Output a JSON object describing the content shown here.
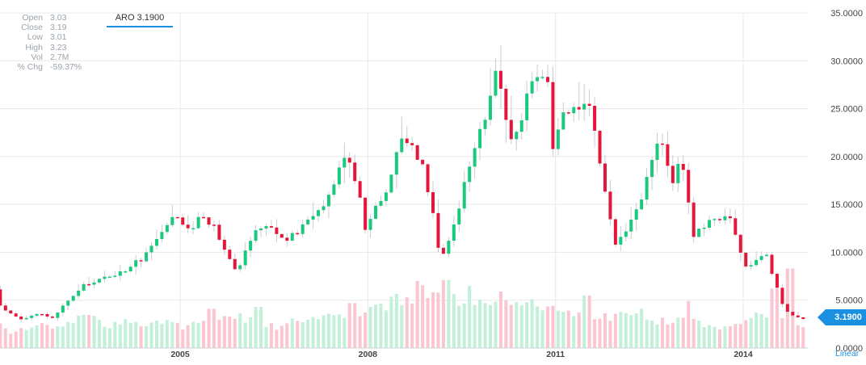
{
  "stats": [
    {
      "label": "Open",
      "value": "3.03"
    },
    {
      "label": "Close",
      "value": "3.19"
    },
    {
      "label": "Low",
      "value": "3.01"
    },
    {
      "label": "High",
      "value": "3.23"
    },
    {
      "label": "Vol",
      "value": "2.7M"
    },
    {
      "label": "% Chg",
      "value": "-59.37%"
    }
  ],
  "ticker_tab": "ARO 3.1900",
  "last_price_badge": "3.1900",
  "scale_mode": "Linear",
  "colors": {
    "up": "#19c97d",
    "down": "#e4173b",
    "up_volume": "#c3f0d9",
    "down_volume": "#fbc6d1",
    "accent": "#1a91e0",
    "grid": "#e8e8e8",
    "axis_text": "#444444"
  },
  "chart_data": {
    "type": "candlestick",
    "symbol": "ARO",
    "interval": "monthly",
    "x_range": [
      2002.0,
      2015.0
    ],
    "ylim": [
      0,
      35
    ],
    "ytick_values": [
      0,
      5,
      10,
      15,
      20,
      25,
      30,
      35
    ],
    "ytick_labels": [
      "0.0000",
      "5.0000",
      "10.0000",
      "15.0000",
      "20.0000",
      "25.0000",
      "30.0000",
      "35.0000"
    ],
    "xtick_values": [
      2005,
      2008,
      2011,
      2014
    ],
    "xtick_labels": [
      "2005",
      "2008",
      "2011",
      "2014"
    ],
    "grid": true,
    "last_price": 3.19,
    "price_anchors": [
      [
        2002.0,
        7.8
      ],
      [
        2002.15,
        4.5
      ],
      [
        2002.3,
        3.7
      ],
      [
        2002.5,
        3.0
      ],
      [
        2002.8,
        3.6
      ],
      [
        2003.0,
        3.1
      ],
      [
        2003.2,
        4.6
      ],
      [
        2003.5,
        6.5
      ],
      [
        2003.8,
        7.3
      ],
      [
        2004.1,
        7.9
      ],
      [
        2004.4,
        9.2
      ],
      [
        2004.7,
        11.6
      ],
      [
        2004.95,
        13.6
      ],
      [
        2005.2,
        12.3
      ],
      [
        2005.4,
        14.0
      ],
      [
        2005.6,
        12.5
      ],
      [
        2005.8,
        9.8
      ],
      [
        2005.95,
        8.1
      ],
      [
        2006.2,
        12.0
      ],
      [
        2006.45,
        13.1
      ],
      [
        2006.7,
        11.0
      ],
      [
        2006.9,
        12.0
      ],
      [
        2007.15,
        13.7
      ],
      [
        2007.4,
        15.8
      ],
      [
        2007.7,
        20.8
      ],
      [
        2007.9,
        16.1
      ],
      [
        2008.0,
        12.6
      ],
      [
        2008.3,
        16.0
      ],
      [
        2008.6,
        22.3
      ],
      [
        2008.9,
        19.6
      ],
      [
        2009.1,
        13.9
      ],
      [
        2009.2,
        9.0
      ],
      [
        2009.45,
        13.2
      ],
      [
        2009.7,
        20.5
      ],
      [
        2009.9,
        24.0
      ],
      [
        2010.1,
        28.7
      ],
      [
        2010.3,
        22.2
      ],
      [
        2010.5,
        23.5
      ],
      [
        2010.65,
        28.6
      ],
      [
        2010.9,
        28.5
      ],
      [
        2011.0,
        21.3
      ],
      [
        2011.2,
        25.4
      ],
      [
        2011.4,
        24.1
      ],
      [
        2011.6,
        25.6
      ],
      [
        2011.8,
        17.4
      ],
      [
        2012.0,
        10.8
      ],
      [
        2012.2,
        12.5
      ],
      [
        2012.4,
        15.2
      ],
      [
        2012.7,
        22.1
      ],
      [
        2012.9,
        17.4
      ],
      [
        2013.05,
        20.1
      ],
      [
        2013.25,
        11.8
      ],
      [
        2013.5,
        13.0
      ],
      [
        2013.8,
        14.3
      ],
      [
        2014.1,
        8.0
      ],
      [
        2014.4,
        9.9
      ],
      [
        2014.7,
        4.0
      ],
      [
        2014.95,
        3.0
      ],
      [
        2015.2,
        3.19
      ]
    ],
    "volume_anchors": [
      [
        2002.0,
        3.1
      ],
      [
        2002.3,
        1.4
      ],
      [
        2002.6,
        2.5
      ],
      [
        2002.9,
        2.3
      ],
      [
        2003.2,
        2.7
      ],
      [
        2003.5,
        3.6
      ],
      [
        2003.8,
        2.2
      ],
      [
        2004.1,
        2.8
      ],
      [
        2004.4,
        2.4
      ],
      [
        2004.7,
        3.0
      ],
      [
        2005.0,
        2.1
      ],
      [
        2005.3,
        2.9
      ],
      [
        2005.6,
        3.5
      ],
      [
        2005.9,
        3.3
      ],
      [
        2006.2,
        2.7
      ],
      [
        2006.5,
        2.1
      ],
      [
        2006.8,
        2.9
      ],
      [
        2007.1,
        3.0
      ],
      [
        2007.4,
        3.4
      ],
      [
        2007.7,
        3.3
      ],
      [
        2008.0,
        4.2
      ],
      [
        2008.3,
        4.7
      ],
      [
        2008.6,
        5.3
      ],
      [
        2008.9,
        5.9
      ],
      [
        2009.1,
        5.6
      ],
      [
        2009.4,
        5.2
      ],
      [
        2009.7,
        5.0
      ],
      [
        2010.0,
        4.8
      ],
      [
        2010.3,
        4.3
      ],
      [
        2010.6,
        4.5
      ],
      [
        2010.9,
        3.9
      ],
      [
        2011.2,
        3.7
      ],
      [
        2011.5,
        3.6
      ],
      [
        2011.8,
        3.2
      ],
      [
        2012.1,
        3.4
      ],
      [
        2012.4,
        2.9
      ],
      [
        2012.7,
        2.8
      ],
      [
        2013.0,
        3.2
      ],
      [
        2013.3,
        2.4
      ],
      [
        2013.6,
        1.9
      ],
      [
        2013.9,
        2.4
      ],
      [
        2014.2,
        3.5
      ],
      [
        2014.5,
        3.2
      ],
      [
        2014.8,
        2.8
      ],
      [
        2015.0,
        2.0
      ],
      [
        2015.2,
        0.8
      ]
    ],
    "volume_spikes": [
      [
        2005.45,
        4.1
      ],
      [
        2006.2,
        4.3
      ],
      [
        2007.7,
        4.7
      ],
      [
        2008.55,
        5.3
      ],
      [
        2008.75,
        7.0
      ],
      [
        2009.2,
        7.1
      ],
      [
        2009.6,
        6.5
      ],
      [
        2010.05,
        5.9
      ],
      [
        2011.45,
        5.5
      ],
      [
        2012.3,
        4.1
      ],
      [
        2013.05,
        4.9
      ],
      [
        2014.15,
        3.7
      ],
      [
        2014.45,
        6.2
      ],
      [
        2014.7,
        8.3
      ],
      [
        2015.0,
        6.9
      ],
      [
        2015.1,
        4.4
      ]
    ],
    "volume_scale_max": 26
  }
}
